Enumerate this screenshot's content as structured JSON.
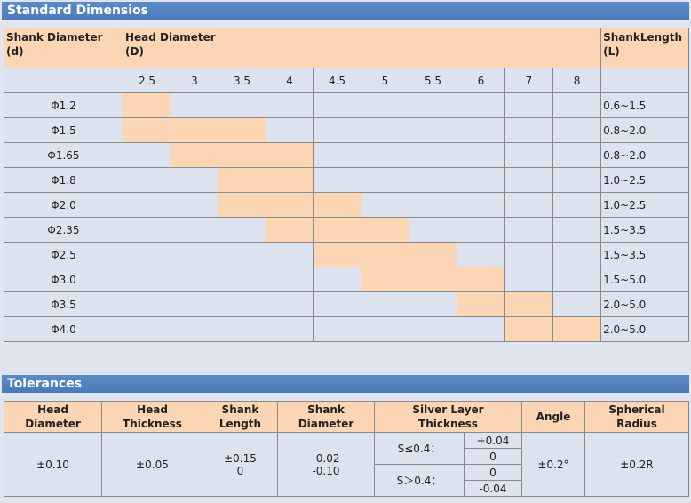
{
  "standard": {
    "title": "Standard Dimensios",
    "header": {
      "shank": [
        "Shank Diameter",
        "(d)"
      ],
      "head": [
        "Head Diameter",
        "(D)"
      ],
      "length": [
        "ShankLength",
        "(L)"
      ]
    },
    "head_diameters": [
      "2.5",
      "3",
      "3.5",
      "4",
      "4.5",
      "5",
      "5.5",
      "6",
      "7",
      "8"
    ],
    "rows": [
      {
        "shank": "Φ1.2",
        "cells": [
          true,
          false,
          false,
          false,
          false,
          false,
          false,
          false,
          false,
          false
        ],
        "length": "0.6~1.5"
      },
      {
        "shank": "Φ1.5",
        "cells": [
          true,
          true,
          true,
          false,
          false,
          false,
          false,
          false,
          false,
          false
        ],
        "length": "0.8~2.0"
      },
      {
        "shank": "Φ1.65",
        "cells": [
          false,
          true,
          true,
          true,
          false,
          false,
          false,
          false,
          false,
          false
        ],
        "length": "0.8~2.0"
      },
      {
        "shank": "Φ1.8",
        "cells": [
          false,
          false,
          true,
          true,
          false,
          false,
          false,
          false,
          false,
          false
        ],
        "length": "1.0~2.5"
      },
      {
        "shank": "Φ2.0",
        "cells": [
          false,
          false,
          true,
          true,
          true,
          false,
          false,
          false,
          false,
          false
        ],
        "length": "1.0~2.5"
      },
      {
        "shank": "Φ2.35",
        "cells": [
          false,
          false,
          false,
          true,
          true,
          true,
          false,
          false,
          false,
          false
        ],
        "length": "1.5~3.5"
      },
      {
        "shank": "Φ2.5",
        "cells": [
          false,
          false,
          false,
          false,
          true,
          true,
          true,
          false,
          false,
          false
        ],
        "length": "1.5~3.5"
      },
      {
        "shank": "Φ3.0",
        "cells": [
          false,
          false,
          false,
          false,
          false,
          true,
          true,
          true,
          false,
          false
        ],
        "length": "1.5~5.0"
      },
      {
        "shank": "Φ3.5",
        "cells": [
          false,
          false,
          false,
          false,
          false,
          false,
          false,
          true,
          true,
          false
        ],
        "length": "2.0~5.0"
      },
      {
        "shank": "Φ4.0",
        "cells": [
          false,
          false,
          false,
          false,
          false,
          false,
          false,
          false,
          true,
          true
        ],
        "length": "2.0~5.0"
      }
    ]
  },
  "tolerances": {
    "title": "Tolerances",
    "headers": [
      [
        "Head",
        "Diameter"
      ],
      [
        "Head",
        "Thickness"
      ],
      [
        "Shank",
        "Length"
      ],
      [
        "Shank",
        "Diameter"
      ],
      [
        "Silver Layer",
        "Thickness"
      ],
      [
        "Angle"
      ],
      [
        "Spherical",
        "Radius"
      ]
    ],
    "head_diameter": "±0.10",
    "head_thickness": "±0.05",
    "shank_length": [
      "±0.15",
      "0"
    ],
    "shank_diameter": [
      "-0.02",
      "-0.10"
    ],
    "silver": [
      {
        "condition": "S≤0.4：",
        "values": [
          "+0.04",
          "0"
        ]
      },
      {
        "condition": "S＞0.4：",
        "values": [
          "0",
          "-0.04"
        ]
      }
    ],
    "angle": "±0.2°",
    "spherical_radius": "±0.2R"
  }
}
